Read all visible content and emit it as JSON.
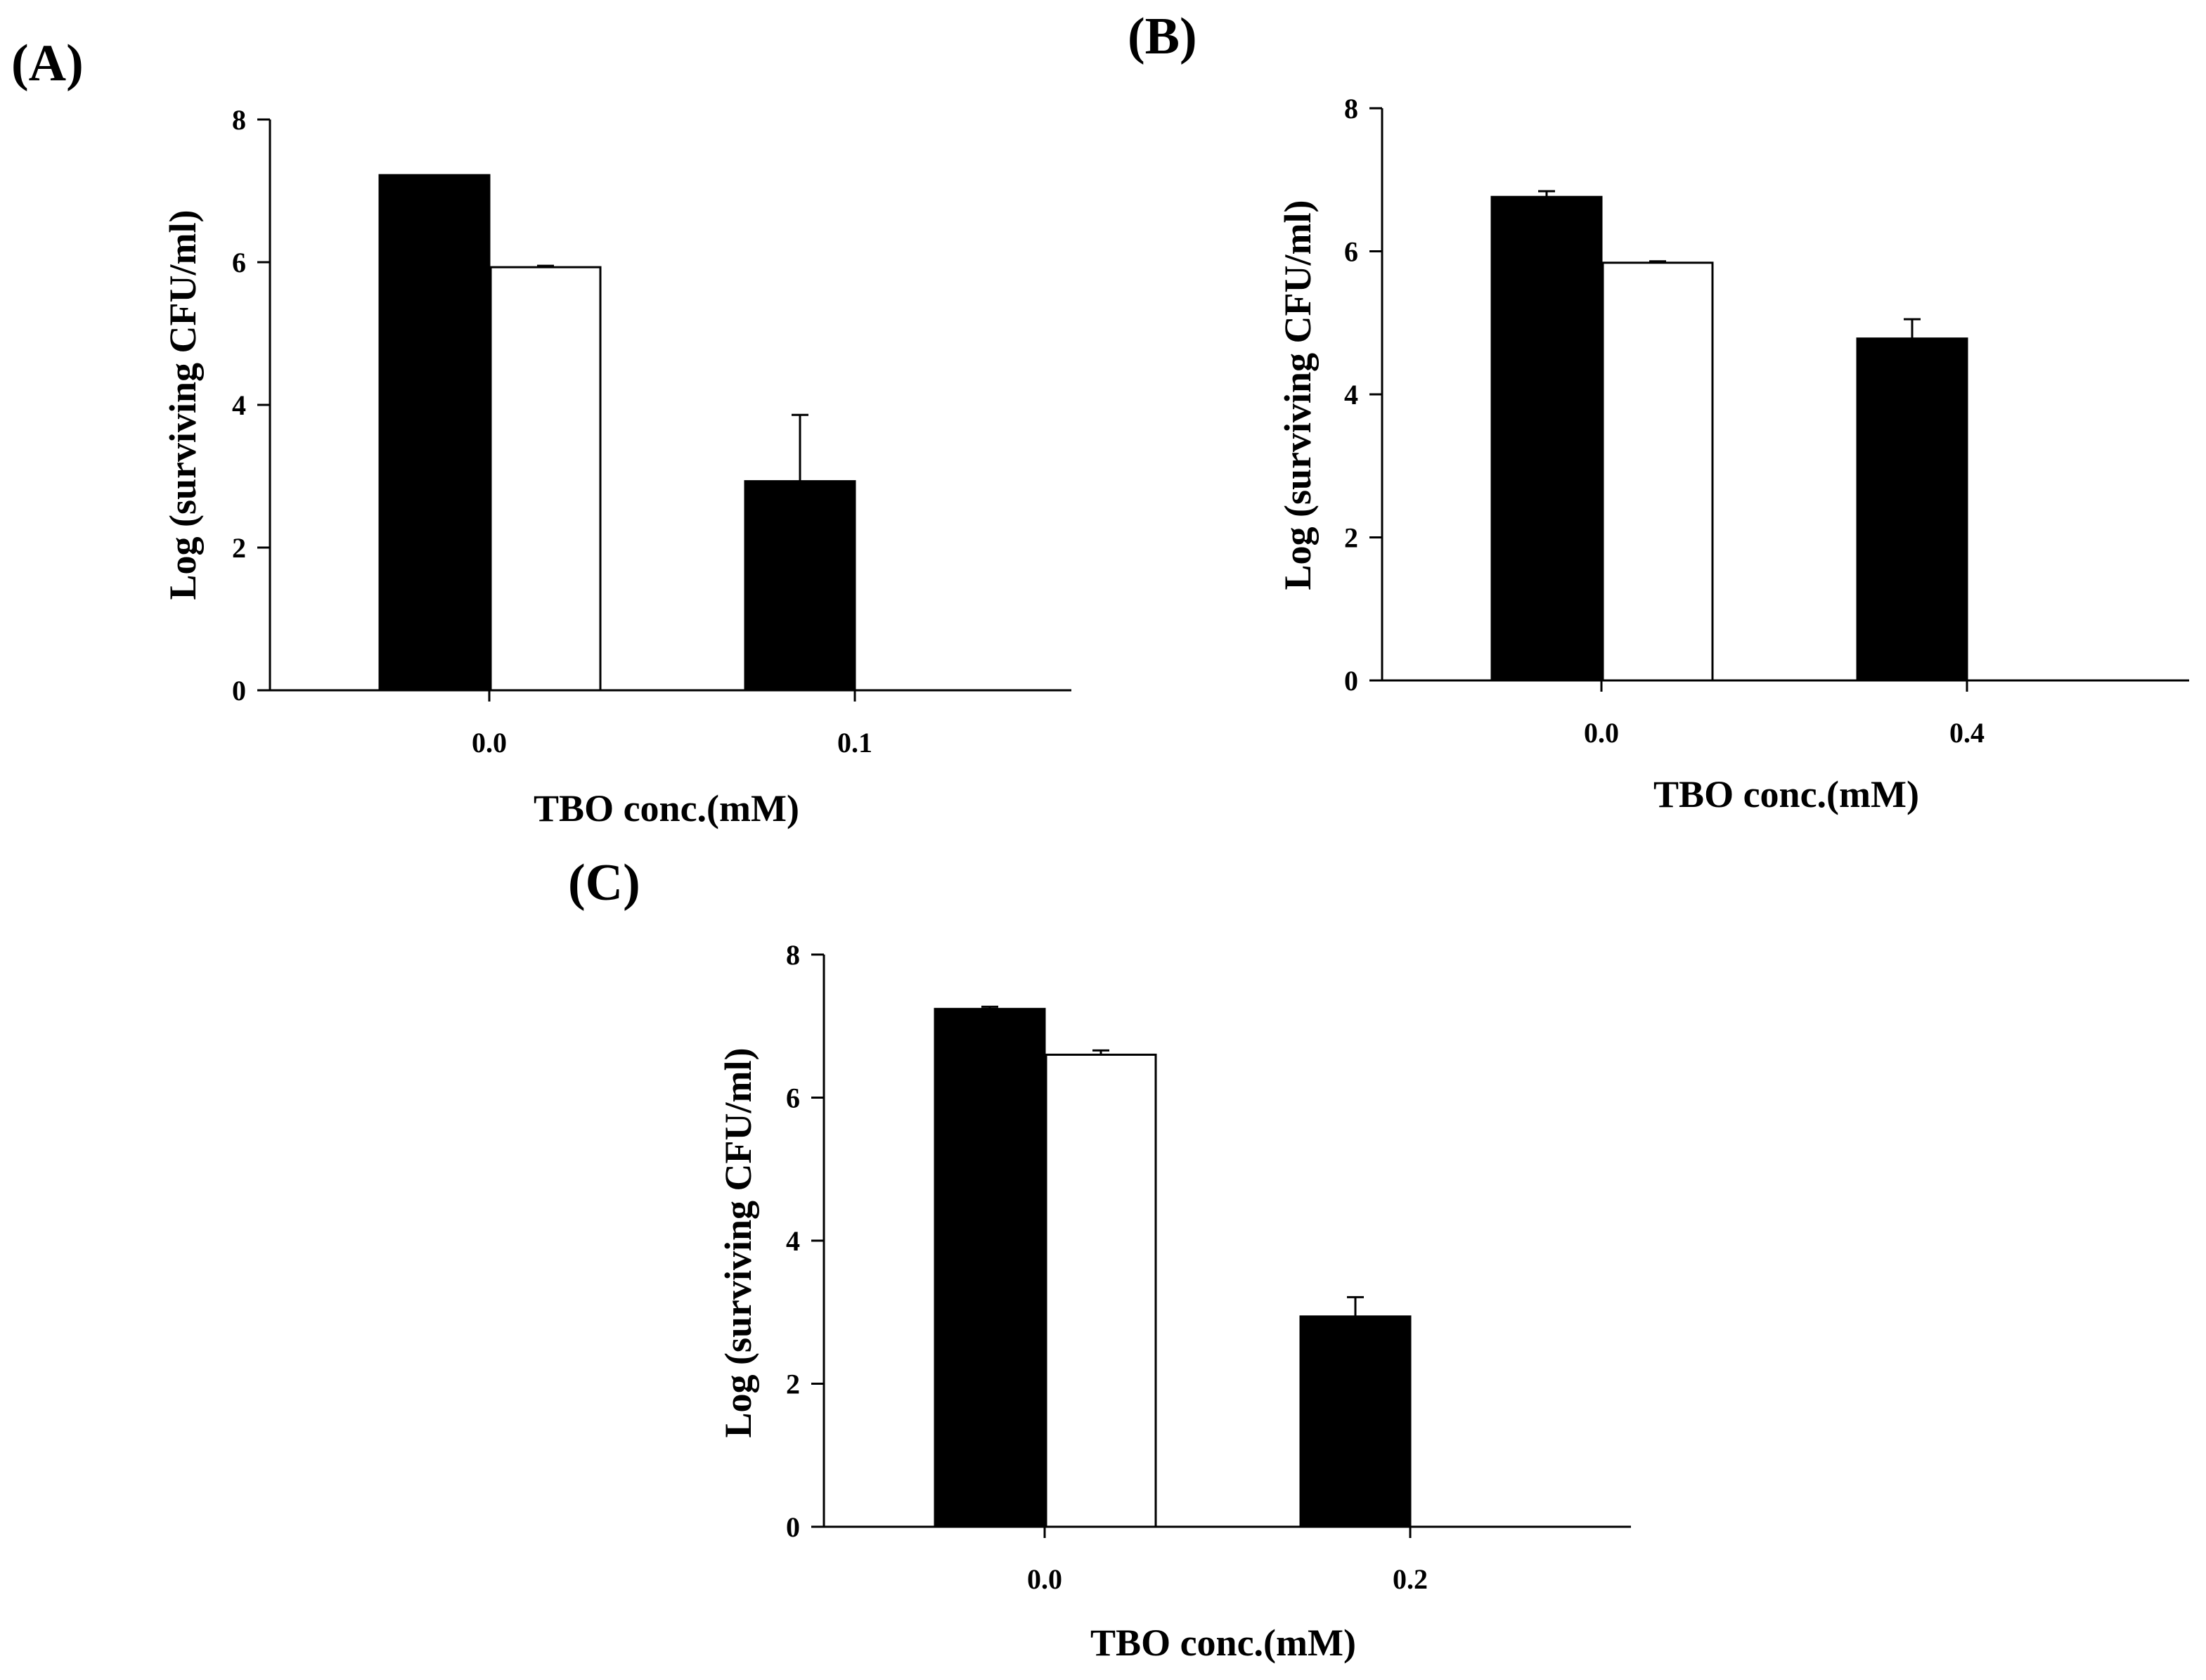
{
  "figure": {
    "bar_fill_colors": [
      "#000000",
      "#ffffff"
    ],
    "edge_color": "#000000"
  },
  "chart_data": [
    {
      "panel": "(A)",
      "type": "bar",
      "xlabel": "TBO conc.(mM)",
      "ylabel": "Log (surviving CFU/ml)",
      "ylim": [
        0,
        8
      ],
      "yticks": [
        "0",
        "2",
        "4",
        "6",
        "8"
      ],
      "categories": [
        "0.0",
        "0.1"
      ],
      "series": [
        {
          "fill": "#000000",
          "values": [
            7.22,
            2.93
          ],
          "errors": [
            0.0,
            0.93
          ]
        },
        {
          "fill": "#ffffff",
          "values": [
            5.93,
            null
          ],
          "errors": [
            0.02,
            null
          ]
        }
      ]
    },
    {
      "panel": "(B)",
      "type": "bar",
      "xlabel": "TBO conc.(mM)",
      "ylabel": "Log (surviving CFU/ml)",
      "ylim": [
        0,
        8
      ],
      "yticks": [
        "0",
        "2",
        "4",
        "6",
        "8"
      ],
      "categories": [
        "0.0",
        "0.4"
      ],
      "series": [
        {
          "fill": "#000000",
          "values": [
            6.76,
            4.78
          ],
          "errors": [
            0.08,
            0.27
          ]
        },
        {
          "fill": "#ffffff",
          "values": [
            5.84,
            null
          ],
          "errors": [
            0.02,
            null
          ]
        }
      ]
    },
    {
      "panel": "(C)",
      "type": "bar",
      "xlabel": "TBO conc.(mM)",
      "ylabel": "Log (surviving CFU/ml)",
      "ylim": [
        0,
        8
      ],
      "yticks": [
        "0",
        "2",
        "4",
        "6",
        "8"
      ],
      "categories": [
        "0.0",
        "0.2"
      ],
      "series": [
        {
          "fill": "#000000",
          "values": [
            7.24,
            2.94
          ],
          "errors": [
            0.03,
            0.27
          ]
        },
        {
          "fill": "#ffffff",
          "values": [
            6.6,
            null
          ],
          "errors": [
            0.06,
            null
          ]
        }
      ]
    }
  ]
}
